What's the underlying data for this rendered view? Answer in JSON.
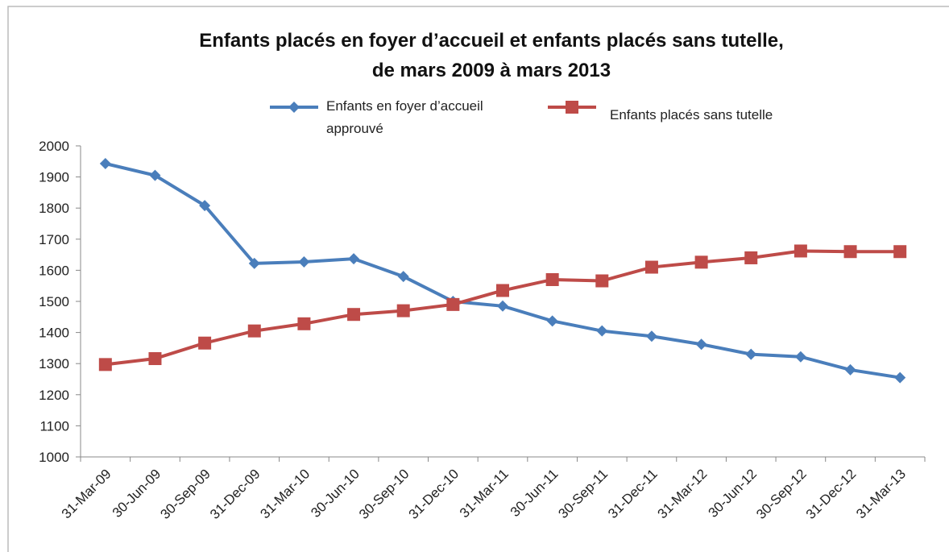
{
  "chart_data": {
    "type": "line",
    "title": [
      "Enfants placés en foyer d’accueil et enfants placés sans tutelle,",
      "de mars 2009 à mars 2013"
    ],
    "categories": [
      "31-Mar-09",
      "30-Jun-09",
      "30-Sep-09",
      "31-Dec-09",
      "31-Mar-10",
      "30-Jun-10",
      "30-Sep-10",
      "31-Dec-10",
      "31-Mar-11",
      "30-Jun-11",
      "30-Sep-11",
      "31-Dec-11",
      "31-Mar-12",
      "30-Jun-12",
      "30-Sep-12",
      "31-Dec-12",
      "31-Mar-13"
    ],
    "series": [
      {
        "name": "Enfants en foyer d’accueil approuvé",
        "color": "#4a7ebb",
        "marker": "diamond",
        "values": [
          1943,
          1905,
          1808,
          1622,
          1627,
          1637,
          1580,
          1500,
          1485,
          1437,
          1405,
          1388,
          1362,
          1330,
          1322,
          1280,
          1255
        ]
      },
      {
        "name": "Enfants placés sans tutelle",
        "color": "#be4b48",
        "marker": "square",
        "values": [
          1297,
          1316,
          1366,
          1405,
          1428,
          1458,
          1470,
          1490,
          1535,
          1570,
          1566,
          1610,
          1626,
          1640,
          1662,
          1660,
          1660
        ]
      }
    ],
    "ylim": [
      1000,
      2000
    ],
    "yticks": [
      1000,
      1100,
      1200,
      1300,
      1400,
      1500,
      1600,
      1700,
      1800,
      1900,
      2000
    ],
    "grid": false
  }
}
